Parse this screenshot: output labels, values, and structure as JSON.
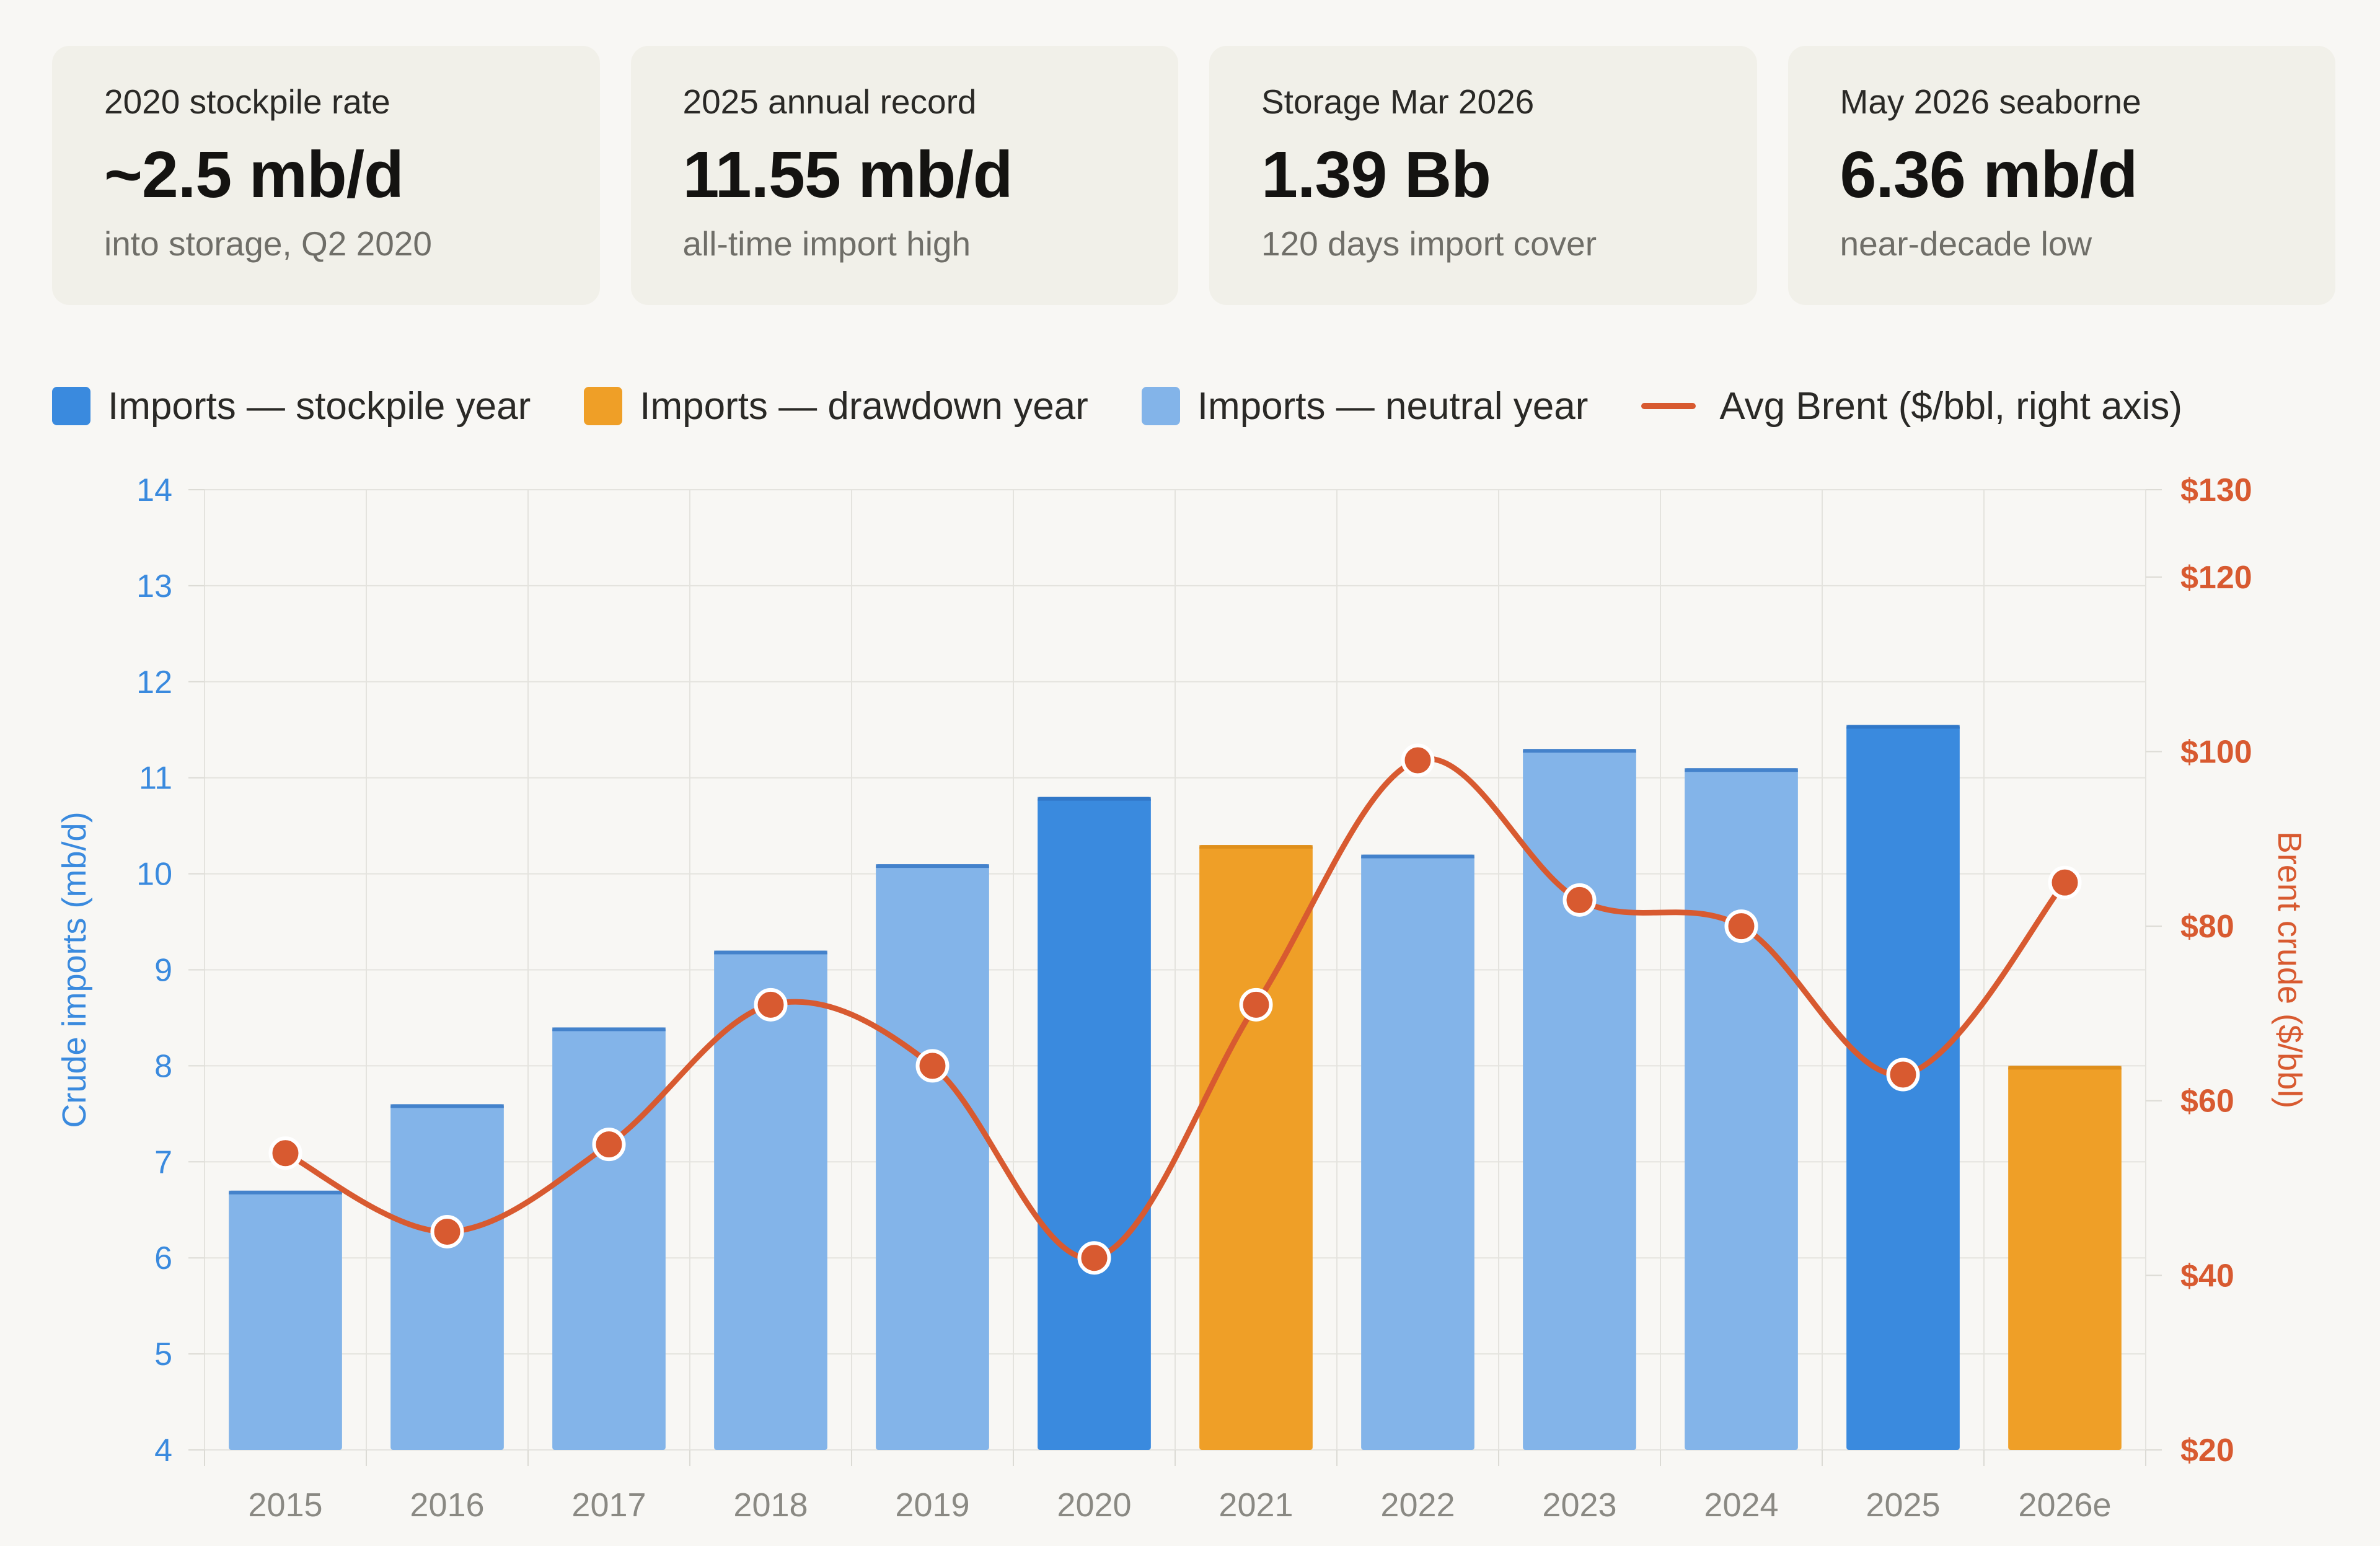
{
  "cards": [
    {
      "label": "2020 stockpile rate",
      "value": "~2.5 mb/d",
      "sub": "into storage, Q2 2020"
    },
    {
      "label": "2025 annual record",
      "value": "11.55 mb/d",
      "sub": "all-time import high"
    },
    {
      "label": "Storage Mar 2026",
      "value": "1.39 Bb",
      "sub": "120 days import cover"
    },
    {
      "label": "May 2026 seaborne",
      "value": "6.36 mb/d",
      "sub": "near-decade low"
    }
  ],
  "legend": [
    {
      "label": "Imports — stockpile year",
      "color": "#3a8ade",
      "kind": "swatch"
    },
    {
      "label": "Imports — drawdown year",
      "color": "#ef9f27",
      "kind": "swatch"
    },
    {
      "label": "Imports — neutral year",
      "color": "#83b4e9",
      "kind": "swatch"
    },
    {
      "label": "Avg Brent ($/bbl, right axis)",
      "color": "#d85a30",
      "kind": "line"
    }
  ],
  "chart_data": {
    "type": "bar",
    "categories": [
      "2015",
      "2016",
      "2017",
      "2018",
      "2019",
      "2020",
      "2021",
      "2022",
      "2023",
      "2024",
      "2025",
      "2026e"
    ],
    "series": [
      {
        "name": "Imports",
        "axis": "left",
        "values": [
          6.7,
          7.6,
          8.4,
          9.2,
          10.1,
          10.8,
          10.3,
          10.2,
          11.3,
          11.1,
          11.55,
          8.0
        ],
        "year_type": [
          "neutral",
          "neutral",
          "neutral",
          "neutral",
          "neutral",
          "stockpile",
          "drawdown",
          "neutral",
          "neutral",
          "neutral",
          "stockpile",
          "drawdown"
        ]
      },
      {
        "name": "Avg Brent",
        "axis": "right",
        "type": "line",
        "values": [
          54,
          45,
          55,
          71,
          64,
          42,
          71,
          99,
          83,
          80,
          63,
          85
        ]
      }
    ],
    "colors": {
      "stockpile": "#3a8ade",
      "drawdown": "#ef9f27",
      "neutral": "#83b4e9",
      "brent": "#d85a30"
    },
    "ylabel": "Crude imports (mb/d)",
    "y2label": "Brent crude ($/bbl)",
    "ylim": [
      4,
      14
    ],
    "yticks": [
      4,
      5,
      6,
      7,
      8,
      9,
      10,
      11,
      12,
      13,
      14
    ],
    "y2lim": [
      20,
      130
    ],
    "y2ticks": [
      20,
      40,
      60,
      80,
      100,
      120,
      130
    ],
    "y2tick_labels": [
      "$20",
      "$40",
      "$60",
      "$80",
      "$100",
      "$120",
      "$130"
    ],
    "grid": true
  }
}
